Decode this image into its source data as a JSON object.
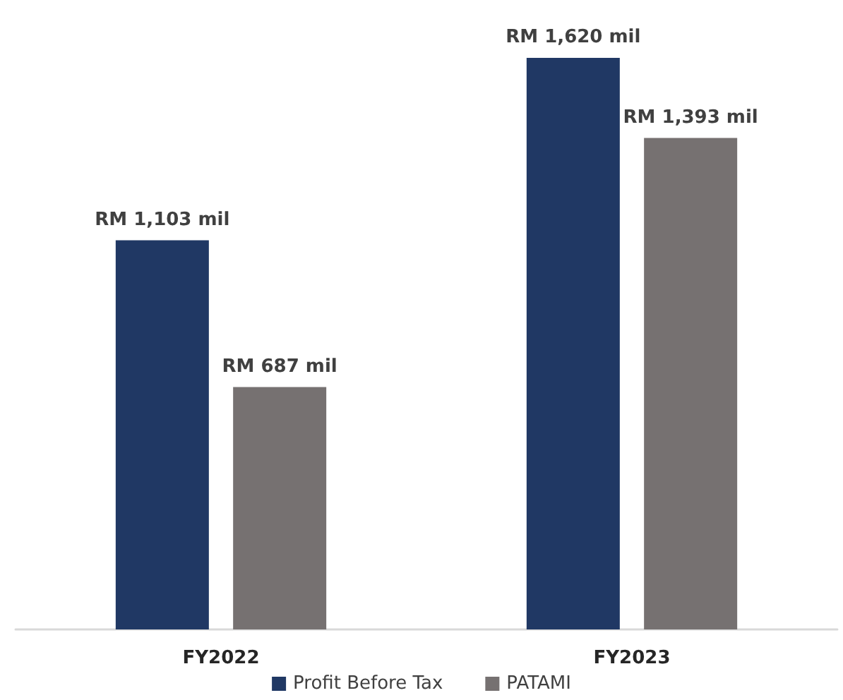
{
  "chart_data": {
    "type": "bar",
    "categories": [
      "FY2022",
      "FY2023"
    ],
    "series": [
      {
        "name": "Profit Before Tax",
        "color": "#203864",
        "values": [
          1103,
          1620
        ],
        "value_labels": [
          "RM 1,103 mil",
          "RM 1,620 mil"
        ]
      },
      {
        "name": "PATAMI",
        "color": "#767171",
        "values": [
          687,
          1393
        ],
        "value_labels": [
          "RM 687 mil",
          "RM 1,393 mil"
        ]
      }
    ],
    "grid": false,
    "legend": "bottom",
    "tick_labels": "x"
  }
}
